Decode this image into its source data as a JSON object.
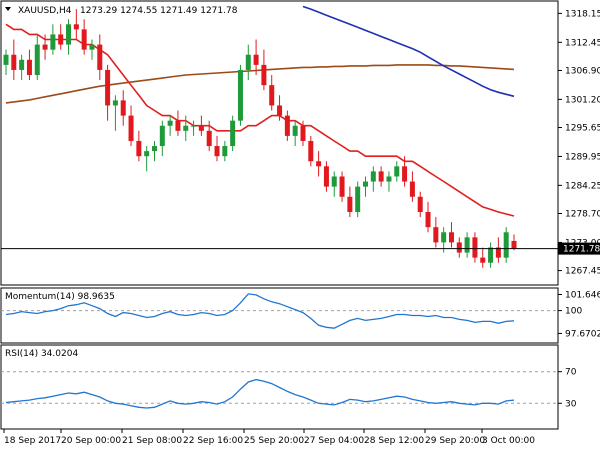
{
  "chart_data": [
    {
      "type": "candlestick",
      "symbol": "XAUUSD,H4",
      "ohlc": "1273.29 1274.55 1271.49 1271.78",
      "ylim": [
        1265.0,
        1320.0
      ],
      "y_ticks": [
        "1318.15",
        "1312.45",
        "1306.90",
        "1301.20",
        "1295.65",
        "1289.95",
        "1284.25",
        "1278.70",
        "1273.00",
        "1267.45"
      ],
      "last_price": "1271.78",
      "candles": [
        [
          1308,
          1311,
          1306,
          1310
        ],
        [
          1310,
          1313,
          1305,
          1307
        ],
        [
          1307,
          1310,
          1305,
          1309
        ],
        [
          1309,
          1311,
          1305,
          1306
        ],
        [
          1306,
          1314,
          1305,
          1312
        ],
        [
          1312,
          1314,
          1309,
          1311
        ],
        [
          1311,
          1316,
          1310,
          1314
        ],
        [
          1314,
          1316,
          1311,
          1312
        ],
        [
          1312,
          1317,
          1310,
          1316
        ],
        [
          1316,
          1319,
          1313,
          1315
        ],
        [
          1315,
          1317,
          1310,
          1311
        ],
        [
          1311,
          1313,
          1309,
          1312
        ],
        [
          1312,
          1314,
          1305,
          1307
        ],
        [
          1307,
          1308,
          1297,
          1300
        ],
        [
          1300,
          1302,
          1295,
          1301
        ],
        [
          1301,
          1303,
          1296,
          1298
        ],
        [
          1298,
          1300,
          1292,
          1293
        ],
        [
          1293,
          1295,
          1289,
          1290
        ],
        [
          1290,
          1292,
          1287,
          1291
        ],
        [
          1291,
          1293,
          1289,
          1292
        ],
        [
          1292,
          1297,
          1290,
          1296
        ],
        [
          1296,
          1298,
          1294,
          1297
        ],
        [
          1297,
          1299,
          1294,
          1295
        ],
        [
          1295,
          1298,
          1293,
          1296
        ],
        [
          1296,
          1297,
          1294,
          1296
        ],
        [
          1296,
          1298,
          1294,
          1295
        ],
        [
          1295,
          1297,
          1291,
          1292
        ],
        [
          1292,
          1294,
          1289,
          1290
        ],
        [
          1290,
          1293,
          1289,
          1292
        ],
        [
          1292,
          1298,
          1291,
          1297
        ],
        [
          1297,
          1308,
          1296,
          1307
        ],
        [
          1307,
          1312,
          1305,
          1310
        ],
        [
          1310,
          1313,
          1306,
          1308
        ],
        [
          1308,
          1311,
          1303,
          1304
        ],
        [
          1304,
          1306,
          1299,
          1300
        ],
        [
          1300,
          1302,
          1297,
          1298
        ],
        [
          1298,
          1299,
          1293,
          1294
        ],
        [
          1294,
          1297,
          1292,
          1296
        ],
        [
          1296,
          1297,
          1292,
          1293
        ],
        [
          1293,
          1294,
          1288,
          1289
        ],
        [
          1289,
          1291,
          1286,
          1288
        ],
        [
          1288,
          1289,
          1283,
          1284
        ],
        [
          1284,
          1287,
          1282,
          1286
        ],
        [
          1286,
          1287,
          1281,
          1282
        ],
        [
          1282,
          1284,
          1278,
          1279
        ],
        [
          1279,
          1285,
          1278,
          1284
        ],
        [
          1284,
          1286,
          1282,
          1285
        ],
        [
          1285,
          1288,
          1283,
          1287
        ],
        [
          1287,
          1288,
          1284,
          1285
        ],
        [
          1285,
          1287,
          1283,
          1286
        ],
        [
          1286,
          1289,
          1285,
          1288
        ],
        [
          1288,
          1290,
          1284,
          1285
        ],
        [
          1285,
          1287,
          1281,
          1282
        ],
        [
          1282,
          1283,
          1278,
          1279
        ],
        [
          1279,
          1281,
          1275,
          1276
        ],
        [
          1276,
          1278,
          1272,
          1273
        ],
        [
          1273,
          1276,
          1271,
          1275
        ],
        [
          1275,
          1277,
          1272,
          1273
        ],
        [
          1273,
          1274,
          1270,
          1271
        ],
        [
          1271,
          1275,
          1270,
          1274
        ],
        [
          1274,
          1275,
          1269,
          1270
        ],
        [
          1270,
          1272,
          1268,
          1269
        ],
        [
          1269,
          1273,
          1268,
          1272
        ],
        [
          1272,
          1274,
          1269,
          1270
        ],
        [
          1270,
          1276,
          1269,
          1275
        ],
        [
          1273.29,
          1274.55,
          1271.49,
          1271.78
        ]
      ],
      "ma_red": [
        1316,
        1315,
        1315,
        1314,
        1314,
        1313,
        1313,
        1313,
        1313,
        1313,
        1312,
        1312,
        1311,
        1310,
        1308,
        1306,
        1304,
        1302,
        1300,
        1299,
        1298,
        1298,
        1297,
        1297,
        1296,
        1296,
        1296,
        1295,
        1295,
        1295,
        1295,
        1296,
        1296,
        1297,
        1298,
        1298,
        1297,
        1297,
        1296,
        1296,
        1295,
        1294,
        1293,
        1292,
        1291,
        1291,
        1290,
        1290,
        1290,
        1290,
        1290,
        1289,
        1289,
        1288,
        1287,
        1286,
        1285,
        1284,
        1283,
        1282,
        1281,
        1280,
        1279.5,
        1279,
        1278.6,
        1278.2
      ],
      "ma_brown": [
        1300.5,
        1300.7,
        1300.9,
        1301.1,
        1301.4,
        1301.7,
        1302,
        1302.3,
        1302.6,
        1302.9,
        1303.2,
        1303.5,
        1303.8,
        1304,
        1304.2,
        1304.4,
        1304.6,
        1304.8,
        1305,
        1305.2,
        1305.4,
        1305.6,
        1305.8,
        1306,
        1306.1,
        1306.2,
        1306.3,
        1306.4,
        1306.5,
        1306.6,
        1306.7,
        1306.8,
        1306.9,
        1307,
        1307.1,
        1307.2,
        1307.3,
        1307.4,
        1307.5,
        1307.5,
        1307.6,
        1307.6,
        1307.7,
        1307.7,
        1307.8,
        1307.8,
        1307.8,
        1307.9,
        1307.9,
        1307.9,
        1308,
        1308,
        1308,
        1308,
        1308,
        1307.9,
        1307.9,
        1307.8,
        1307.8,
        1307.7,
        1307.6,
        1307.5,
        1307.4,
        1307.3,
        1307.2,
        1307.1
      ],
      "ma_blue": [
        null,
        null,
        null,
        null,
        null,
        null,
        null,
        null,
        null,
        null,
        null,
        null,
        null,
        null,
        null,
        null,
        null,
        null,
        null,
        null,
        null,
        null,
        null,
        null,
        null,
        null,
        null,
        null,
        null,
        null,
        null,
        null,
        null,
        null,
        null,
        null,
        null,
        null,
        1319.5,
        1319,
        1318.4,
        1317.8,
        1317.2,
        1316.6,
        1316,
        1315.4,
        1314.8,
        1314.2,
        1313.6,
        1313,
        1312.4,
        1311.8,
        1311.2,
        1310.5,
        1309.6,
        1308.7,
        1307.8,
        1307,
        1306.2,
        1305.4,
        1304.6,
        1303.8,
        1303.1,
        1302.6,
        1302.2,
        1301.8
      ]
    },
    {
      "type": "line",
      "title": "Momentum(14) 98.9635",
      "y_ticks": [
        "101.6461",
        "100",
        "97.6702"
      ],
      "ylim": [
        97.0,
        102.0
      ],
      "values": [
        99.6,
        99.7,
        99.9,
        99.8,
        99.7,
        99.9,
        100.0,
        100.2,
        100.5,
        100.6,
        100.8,
        100.5,
        100.2,
        99.7,
        99.4,
        99.8,
        99.7,
        99.5,
        99.3,
        99.4,
        99.7,
        99.9,
        99.6,
        99.5,
        99.6,
        99.8,
        99.7,
        99.5,
        99.6,
        100.0,
        100.8,
        101.7,
        101.6,
        101.2,
        100.9,
        100.7,
        100.4,
        100.1,
        99.8,
        99.2,
        98.5,
        98.3,
        98.2,
        98.6,
        99.0,
        99.2,
        99.0,
        99.1,
        99.2,
        99.4,
        99.6,
        99.6,
        99.5,
        99.5,
        99.4,
        99.5,
        99.3,
        99.3,
        99.1,
        99.0,
        98.8,
        98.9,
        98.9,
        98.7,
        98.9,
        98.96
      ]
    },
    {
      "type": "line",
      "title": "RSI(14) 34.0204",
      "y_ticks": [
        "70",
        "30"
      ],
      "ylim": [
        0,
        100
      ],
      "values": [
        31,
        32,
        33,
        34,
        36,
        37,
        39,
        41,
        43,
        42,
        44,
        41,
        38,
        33,
        30,
        29,
        27,
        25,
        24,
        25,
        29,
        33,
        30,
        29,
        30,
        32,
        31,
        29,
        32,
        38,
        48,
        57,
        60,
        58,
        55,
        50,
        45,
        41,
        38,
        34,
        30,
        29,
        28,
        31,
        35,
        34,
        32,
        33,
        35,
        37,
        39,
        38,
        35,
        33,
        31,
        30,
        31,
        32,
        30,
        29,
        28,
        30,
        30,
        29,
        33,
        34
      ]
    }
  ],
  "x_labels": [
    "18 Sep 2017",
    "20 Sep 00:00",
    "21 Sep 08:00",
    "22 Sep 16:00",
    "25 Sep 20:00",
    "27 Sep 04:00",
    "28 Sep 12:00",
    "29 Sep 20:00",
    "3 Oct 00:00"
  ],
  "colors": {
    "bull": "#1f9a3a",
    "bear": "#e0191e",
    "ma_red": "#e02020",
    "ma_brown": "#9c4a1a",
    "ma_blue": "#1f2fb5",
    "indicator": "#2176d2",
    "axis": "#000000",
    "grid_dash": "#a0a0a0"
  }
}
